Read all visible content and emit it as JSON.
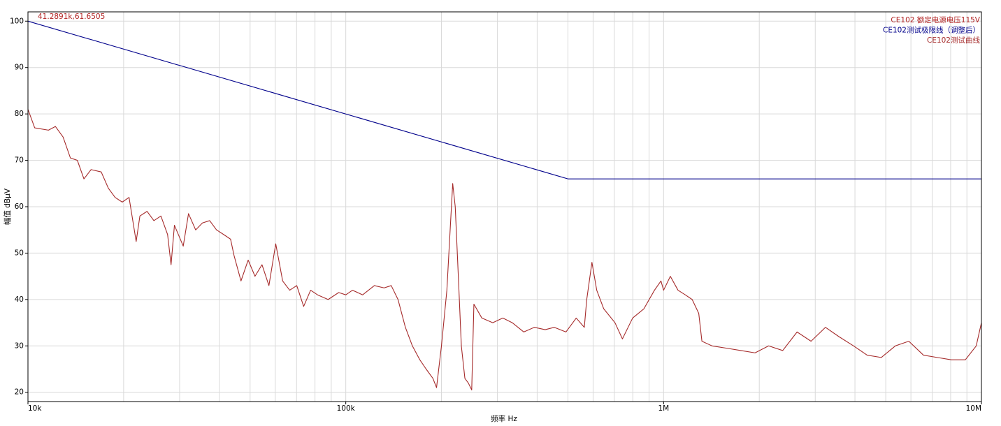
{
  "chart_data": {
    "type": "line",
    "x_label": "频率 Hz",
    "y_label": "幅值 dBμV",
    "annotation": "41.2891k,61.6505",
    "annotation_color": "#b22222",
    "log_x": true,
    "grid": true,
    "legend": "upper right",
    "xlim": [
      10000,
      10000000
    ],
    "xticks": [
      {
        "value": 10000,
        "label": "10k"
      },
      {
        "value": 100000,
        "label": "100k"
      },
      {
        "value": 1000000,
        "label": "1M"
      },
      {
        "value": 10000000,
        "label": "10M"
      }
    ],
    "xminor": [
      20000,
      30000,
      40000,
      50000,
      60000,
      70000,
      80000,
      90000,
      200000,
      300000,
      400000,
      500000,
      600000,
      700000,
      800000,
      900000,
      2000000,
      3000000,
      4000000,
      5000000,
      6000000,
      7000000,
      8000000,
      9000000
    ],
    "ylim": [
      18,
      102
    ],
    "yticks": [
      20,
      30,
      40,
      50,
      60,
      70,
      80,
      90,
      100
    ],
    "series": [
      {
        "name": "CE102 额定电源电压115V",
        "color": "#b22222",
        "x": [],
        "values": []
      },
      {
        "name": "CE102测试极限线（调整后）",
        "color": "#00008b",
        "x": [
          10000,
          500000,
          10000000
        ],
        "values": [
          100,
          66,
          66
        ]
      },
      {
        "name": "CE102测试曲线",
        "color": "#a52a2a",
        "x": [
          10000,
          10500,
          11600,
          12200,
          12900,
          13600,
          14300,
          15000,
          15800,
          17000,
          17900,
          18800,
          19800,
          20800,
          21900,
          22500,
          23700,
          24900,
          26200,
          27500,
          28200,
          28900,
          30800,
          32000,
          33700,
          35400,
          37300,
          39200,
          41300,
          43400,
          44500,
          46800,
          49300,
          51800,
          54500,
          57300,
          60200,
          63300,
          66600,
          70100,
          73700,
          77500,
          81500,
          88000,
          95000,
          100000,
          105000,
          113000,
          123000,
          132000,
          139000,
          146000,
          154000,
          162000,
          171000,
          179000,
          188000,
          193000,
          200000,
          208000,
          213000,
          217000,
          221000,
          226000,
          231000,
          237000,
          243000,
          249000,
          253000,
          268000,
          290000,
          312000,
          334000,
          363000,
          392000,
          424000,
          453000,
          493000,
          531000,
          563000,
          573000,
          595000,
          616000,
          648000,
          703000,
          742000,
          799000,
          867000,
          936000,
          981000,
          1000000,
          1050000,
          1110000,
          1170000,
          1230000,
          1290000,
          1320000,
          1420000,
          1580000,
          1750000,
          1940000,
          2140000,
          2370000,
          2630000,
          2910000,
          3230000,
          3560000,
          3960000,
          4370000,
          4840000,
          5360000,
          5910000,
          6570000,
          7260000,
          8040000,
          8900000,
          9630000,
          10000000
        ],
        "values": [
          81,
          77,
          76.5,
          77.3,
          75,
          70.5,
          70,
          66,
          68,
          67.5,
          64,
          62,
          61,
          62,
          52.5,
          58,
          59,
          57,
          58,
          54,
          47.5,
          56,
          51.5,
          58.5,
          55,
          56.5,
          57,
          55,
          54,
          53,
          49.5,
          44,
          48.5,
          45,
          47.5,
          43,
          52,
          44,
          42,
          43,
          38.5,
          42,
          41,
          40,
          41.5,
          41,
          42,
          41,
          43,
          42.5,
          43,
          40,
          34,
          30,
          27,
          25,
          23,
          21,
          30,
          42,
          55,
          65,
          60,
          45,
          30,
          23,
          22,
          20.5,
          39,
          36,
          35,
          36,
          35,
          33,
          34,
          33.5,
          34,
          33,
          36,
          34,
          40,
          48,
          42,
          38,
          35,
          31.5,
          36,
          38,
          42,
          44,
          42,
          45,
          42,
          41,
          40,
          37,
          31,
          30,
          29.5,
          29,
          28.5,
          30,
          29,
          33,
          31,
          34,
          32,
          30,
          28,
          27.5,
          30,
          31,
          28,
          27.5,
          27,
          27,
          30,
          35
        ]
      }
    ]
  }
}
